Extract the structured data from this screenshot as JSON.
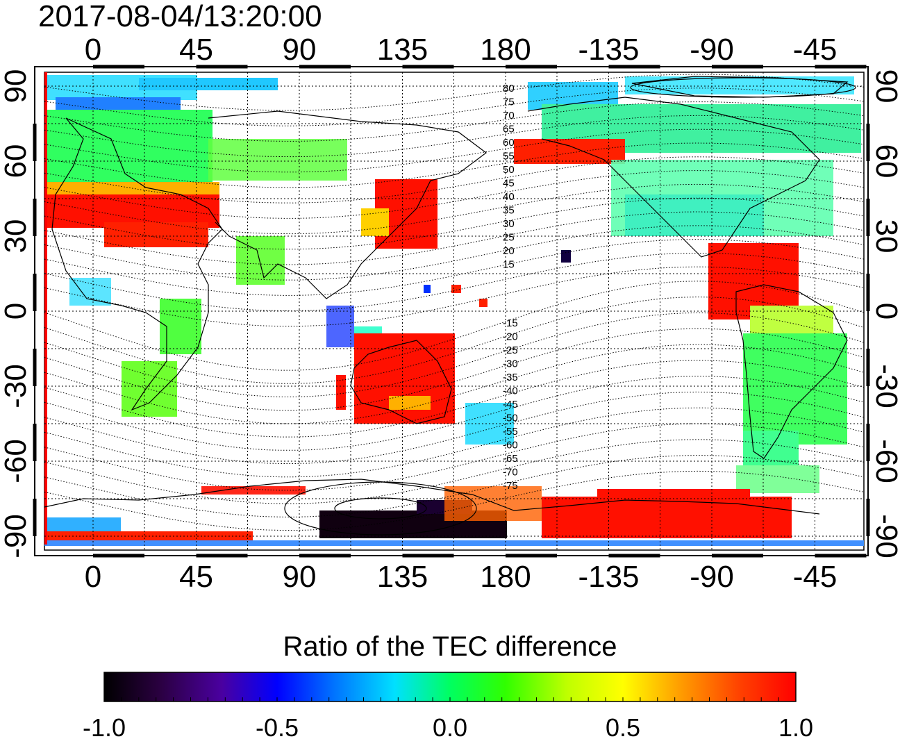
{
  "timestamp": "2017-08-04/13:20:00",
  "top_lon_labels": [
    "0",
    "45",
    "90",
    "135",
    "180",
    "-135",
    "-90",
    "-45"
  ],
  "bottom_lon_labels": [
    "0",
    "45",
    "90",
    "135",
    "180",
    "-135",
    "-90",
    "-45"
  ],
  "left_lat_labels": [
    "90",
    "60",
    "30",
    "0",
    "-30",
    "-60",
    "-90"
  ],
  "right_lat_labels": [
    "90",
    "60",
    "30",
    "0",
    "-30",
    "-60",
    "-90"
  ],
  "contour_labels_north": [
    "80",
    "75",
    "70",
    "65",
    "60",
    "55",
    "50",
    "45",
    "40",
    "35",
    "30",
    "25",
    "20",
    "15"
  ],
  "contour_labels_south": [
    "-15",
    "-20",
    "-25",
    "-30",
    "-35",
    "-40",
    "-45",
    "-50",
    "-55",
    "-60",
    "-65",
    "-70",
    "-75"
  ],
  "colorbar": {
    "title": "Ratio of the TEC difference",
    "tick_labels": [
      "-1.0",
      "-0.5",
      "0.0",
      "0.5",
      "1.0"
    ],
    "range": [
      -1.0,
      1.0
    ],
    "colors": [
      "#000000",
      "#3a0060",
      "#5000c8",
      "#0000ff",
      "#0090ff",
      "#00ffff",
      "#00ff80",
      "#00ff00",
      "#a0ff00",
      "#ffff00",
      "#ffb000",
      "#ff5000",
      "#ff0000"
    ]
  },
  "regions": [
    {
      "name": "europe-red",
      "value": 0.9
    },
    {
      "name": "east-asia-red",
      "value": 0.95
    },
    {
      "name": "australia-red",
      "value": 0.95
    },
    {
      "name": "central-america-red",
      "value": 0.95
    },
    {
      "name": "antarctic-pacific-red",
      "value": 0.95
    },
    {
      "name": "north-atlantic-green",
      "value": 0.05
    },
    {
      "name": "north-america-green",
      "value": 0.0
    },
    {
      "name": "south-america-green",
      "value": 0.15
    },
    {
      "name": "antarctic-dark",
      "value": -0.95
    }
  ]
}
